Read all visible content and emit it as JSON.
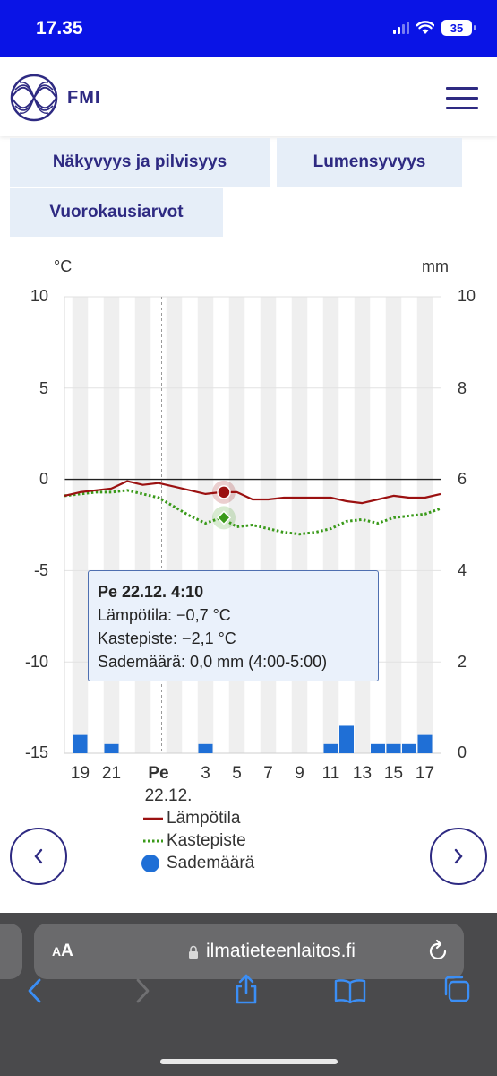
{
  "status": {
    "time": "17.35",
    "battery": "35"
  },
  "header": {
    "brand": "FMI",
    "menu_icon": "hamburger-icon",
    "logo_icon": "fmi-globe-logo"
  },
  "tabs": [
    {
      "label": "Näkyvyys ja pilvisyys"
    },
    {
      "label": "Lumensyvyys"
    },
    {
      "label": "Vuorokausiarvot"
    }
  ],
  "chart_data": {
    "type": "line",
    "left_unit": "°C",
    "right_unit": "mm",
    "y_left_ticks": [
      "10",
      "5",
      "0",
      "-5",
      "-10",
      "-15"
    ],
    "y_right_ticks": [
      "10",
      "8",
      "6",
      "4",
      "2",
      "0"
    ],
    "ylim_left": [
      -15,
      10
    ],
    "ylim_right": [
      0,
      10
    ],
    "x_ticks": [
      "19",
      "21",
      "Pe",
      "3",
      "5",
      "7",
      "9",
      "11",
      "13",
      "15",
      "17"
    ],
    "x_tick_hours": [
      19,
      21,
      24,
      27,
      29,
      31,
      33,
      35,
      37,
      39,
      41
    ],
    "x_date_label": "22.12.",
    "xlim_hours": [
      18,
      42
    ],
    "grid": true,
    "series": [
      {
        "name": "Lämpötila",
        "color": "#9b1111",
        "style": "solid",
        "x": [
          18,
          19,
          20,
          21,
          22,
          23,
          24,
          25,
          26,
          27,
          28,
          29,
          30,
          31,
          32,
          33,
          34,
          35,
          36,
          37,
          38,
          39,
          40,
          41,
          42
        ],
        "y": [
          -0.9,
          -0.7,
          -0.6,
          -0.5,
          -0.1,
          -0.3,
          -0.2,
          -0.4,
          -0.6,
          -0.8,
          -0.7,
          -0.7,
          -1.1,
          -1.1,
          -1.0,
          -1.0,
          -1.0,
          -1.0,
          -1.2,
          -1.3,
          -1.1,
          -0.9,
          -1.0,
          -1.0,
          -0.8
        ]
      },
      {
        "name": "Kastepiste",
        "color": "#3a9a1a",
        "style": "dotted",
        "x": [
          18,
          19,
          20,
          21,
          22,
          23,
          24,
          25,
          26,
          27,
          28,
          29,
          30,
          31,
          32,
          33,
          34,
          35,
          36,
          37,
          38,
          39,
          40,
          41,
          42
        ],
        "y": [
          -0.9,
          -0.8,
          -0.7,
          -0.7,
          -0.6,
          -0.8,
          -1.0,
          -1.5,
          -2.0,
          -2.4,
          -2.1,
          -2.6,
          -2.5,
          -2.7,
          -2.9,
          -3.0,
          -2.9,
          -2.7,
          -2.3,
          -2.2,
          -2.4,
          -2.1,
          -2.0,
          -1.9,
          -1.6
        ]
      },
      {
        "name": "Sademäärä",
        "color": "#1f6fd6",
        "style": "bar",
        "x": [
          19,
          21,
          27,
          35,
          36,
          38,
          39,
          40,
          41
        ],
        "y": [
          0.4,
          0.2,
          0.2,
          0.2,
          0.6,
          0.2,
          0.2,
          0.2,
          0.4
        ]
      }
    ],
    "highlight": {
      "hour": 28.17,
      "temp": -0.7,
      "dew": -2.1
    },
    "current_time_hour": 24.2
  },
  "tooltip": {
    "title": "Pe 22.12. 4:10",
    "line1": "Lämpötila: −0,7 °C",
    "line2": "Kastepiste: −2,1 °C",
    "line3": "Sademäärä: 0,0 mm (4:00-5:00)"
  },
  "legend": [
    {
      "label": "Lämpötila",
      "color": "#9b1111"
    },
    {
      "label": "Kastepiste",
      "color": "#3a9a1a"
    },
    {
      "label": "Sademäärä",
      "color": "#1f6fd6"
    }
  ],
  "nav": {
    "prev_icon": "chevron-left-icon",
    "next_icon": "chevron-right-icon"
  },
  "browser": {
    "aa_label": "AA",
    "url": "ilmatieteenlaitos.fi",
    "icons": [
      "back-icon",
      "forward-icon",
      "share-icon",
      "bookmarks-icon",
      "tabs-icon"
    ]
  }
}
